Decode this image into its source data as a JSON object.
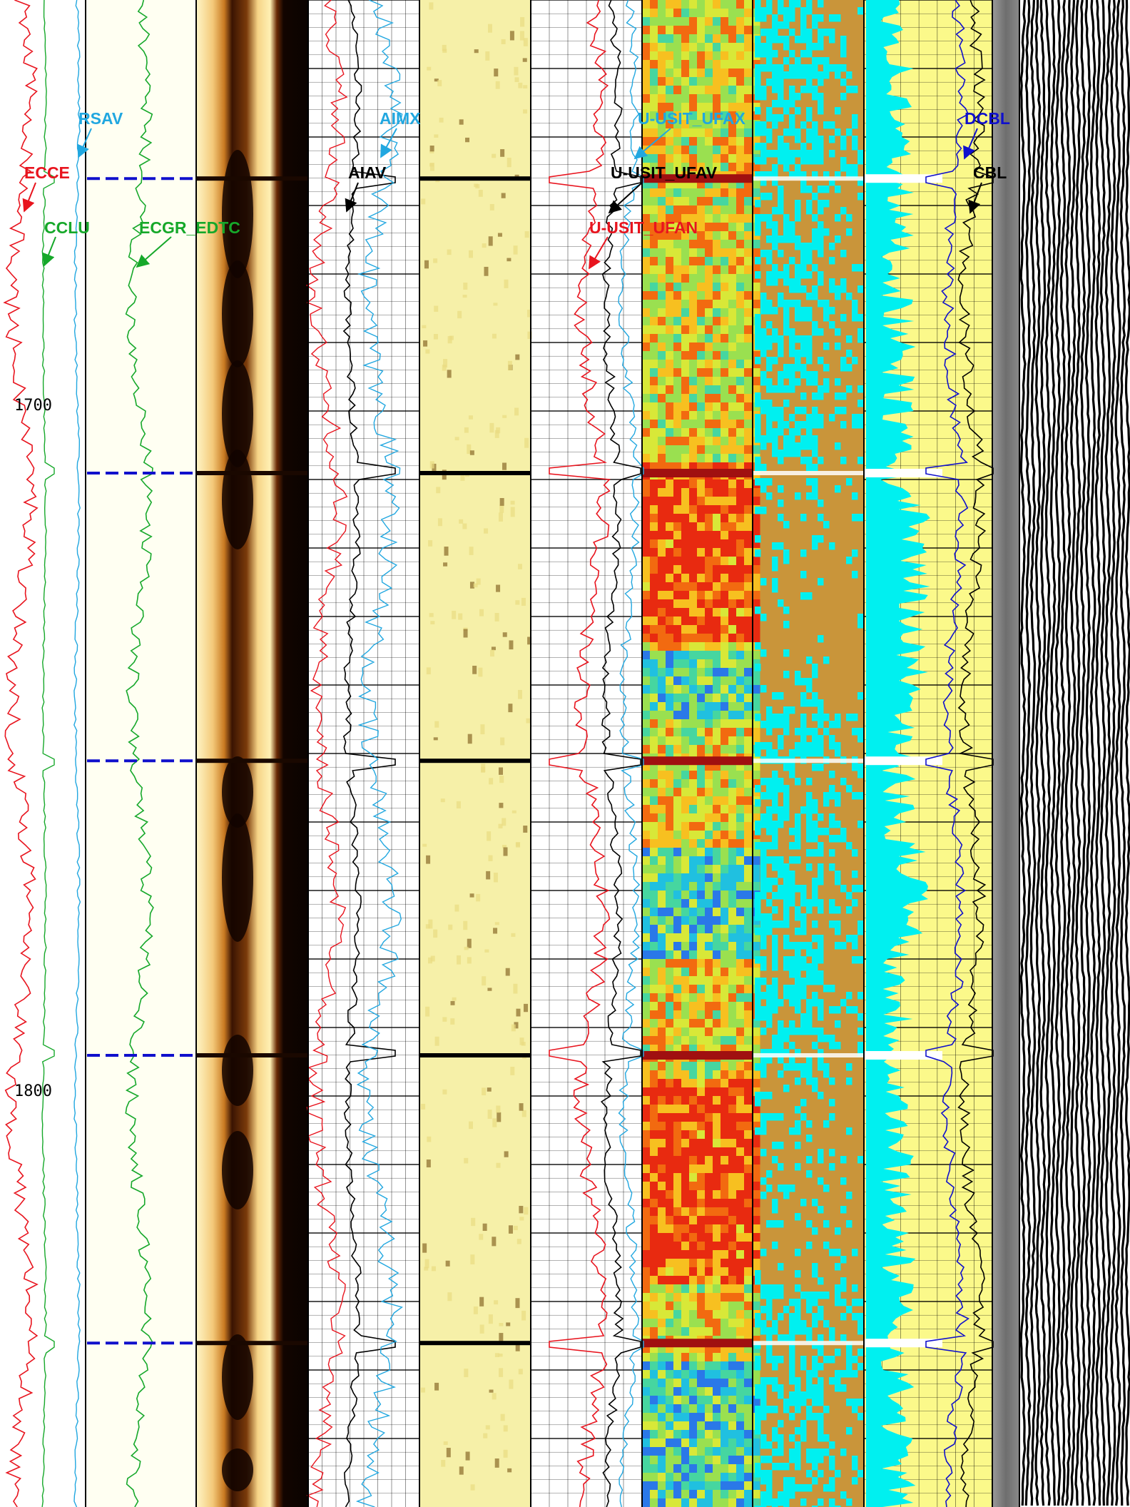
{
  "log": {
    "depth_labels": [
      {
        "text": "1700",
        "depth": 1700
      },
      {
        "text": "1800",
        "depth": 1800
      }
    ],
    "curve_labels": {
      "ecce": "ECCE",
      "rsav": "RSAV",
      "cclu": "CCLU",
      "ecgr_edtc": "ECGR_EDTC",
      "aimx": "AIMX",
      "aiav": "AIAV",
      "ufax": "U-USIT_UFAX",
      "ufav": "U-USIT_UFAV",
      "ufan": "U-USIT_UFAN",
      "dcbl": "DCBL",
      "cbl": "CBL"
    },
    "collar_depths": [
      1667,
      1710,
      1752,
      1795,
      1837
    ],
    "colors": {
      "red": "#e8141e",
      "cyan": "#21a7e0",
      "green": "#16a82a",
      "black": "#000000",
      "blue": "#1010cc",
      "tan": "#c9953a",
      "aqua": "#00f0f0",
      "yellow": "#fbf98a",
      "panel_bg": "#fffff2",
      "bond_gray": "#7a7a7a"
    }
  }
}
